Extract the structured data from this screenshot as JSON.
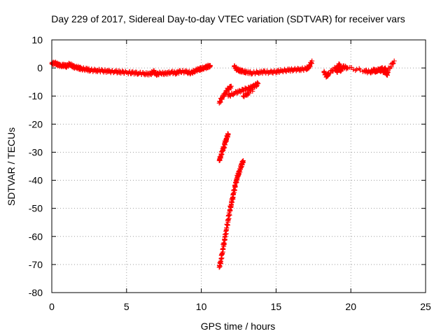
{
  "chart_data": {
    "type": "scatter",
    "title": "Day 229 of 2017, Sidereal Day-to-day VTEC variation (SDTVAR) for receiver vars",
    "xlabel": "GPS time / hours",
    "ylabel": "SDTVAR / TECUs",
    "xlim": [
      0,
      25
    ],
    "ylim": [
      -80,
      10
    ],
    "xticks": [
      0,
      5,
      10,
      15,
      20,
      25
    ],
    "yticks": [
      10,
      0,
      -10,
      -20,
      -30,
      -40,
      -50,
      -60,
      -70,
      -80
    ],
    "grid": true,
    "marker": "plus",
    "color": "#ff0000",
    "series": [
      {
        "name": "continuous track 0-10.5 h",
        "x": [
          0.0,
          0.2,
          0.4,
          0.6,
          0.8,
          1.0,
          1.2,
          1.4,
          1.6,
          1.8,
          2.0,
          2.3,
          2.6,
          3.0,
          3.4,
          3.8,
          4.2,
          4.6,
          5.0,
          5.4,
          5.8,
          6.2,
          6.6,
          6.8,
          7.0,
          7.3,
          7.6,
          8.0,
          8.3,
          8.6,
          9.0,
          9.3,
          9.6,
          9.8,
          10.0,
          10.2,
          10.4,
          10.6
        ],
        "y": [
          1.5,
          1.8,
          1.2,
          0.8,
          1.0,
          0.6,
          1.4,
          0.5,
          0.3,
          0.0,
          -0.3,
          -0.5,
          -0.8,
          -0.9,
          -1.0,
          -1.2,
          -1.3,
          -1.4,
          -1.6,
          -1.7,
          -1.9,
          -2.0,
          -2.2,
          -1.2,
          -2.3,
          -1.8,
          -2.0,
          -1.5,
          -1.8,
          -1.2,
          -1.4,
          -1.8,
          -1.0,
          -0.5,
          -0.3,
          0.0,
          0.5,
          0.6
        ]
      },
      {
        "name": "continuous track 12-17.5 h",
        "x": [
          12.2,
          12.4,
          12.6,
          12.8,
          13.0,
          13.4,
          13.8,
          14.2,
          14.6,
          15.0,
          15.4,
          15.8,
          16.2,
          16.6,
          17.0,
          17.2,
          17.4
        ],
        "y": [
          0.5,
          -0.5,
          -1.0,
          -1.2,
          -1.5,
          -1.8,
          -1.6,
          -1.4,
          -1.5,
          -1.3,
          -1.0,
          -0.8,
          -0.6,
          -0.5,
          -0.3,
          0.2,
          2.5
        ]
      },
      {
        "name": "scattered points 17.5-23 h",
        "x": [
          18.2,
          18.4,
          18.5,
          19.0,
          19.1,
          19.2,
          19.3,
          19.5,
          19.8,
          20.9,
          21.3,
          21.5,
          21.7,
          21.9,
          22.0,
          22.1,
          22.2,
          22.3,
          22.4,
          22.5,
          22.9
        ],
        "y": [
          -1.5,
          -3.0,
          -2.0,
          0.0,
          -1.5,
          1.5,
          -1.0,
          0.5,
          0.0,
          -1.0,
          -1.5,
          -0.8,
          -1.2,
          -0.5,
          -1.0,
          -0.2,
          -1.5,
          0.0,
          -2.5,
          -0.8,
          2.5
        ]
      },
      {
        "name": "upper rising branch",
        "x": [
          11.2,
          11.4,
          11.6,
          11.8,
          12.0
        ],
        "y": [
          -12.5,
          -10.5,
          -9.0,
          -7.5,
          -6.5
        ]
      },
      {
        "name": "upper oblique branch",
        "x": [
          11.8,
          12.2,
          12.6,
          13.0,
          13.3,
          13.6,
          13.8,
          13.2,
          12.8
        ],
        "y": [
          -10.0,
          -9.0,
          -8.2,
          -7.5,
          -7.0,
          -6.2,
          -5.5,
          -9.0,
          -10.0
        ]
      },
      {
        "name": "middle steep branch",
        "x": [
          11.2,
          11.3,
          11.4,
          11.5,
          11.6,
          11.7,
          11.8
        ],
        "y": [
          -33.0,
          -31.5,
          -29.5,
          -28.5,
          -26.5,
          -25.0,
          -23.5
        ]
      },
      {
        "name": "lower steep branch",
        "x": [
          11.2,
          11.3,
          11.4,
          11.5,
          11.6,
          11.7,
          11.8,
          11.9,
          12.0,
          12.1,
          12.2,
          12.3,
          12.4,
          12.5,
          12.6,
          12.7,
          12.8
        ],
        "y": [
          -71.0,
          -69.0,
          -66.0,
          -63.0,
          -60.0,
          -57.0,
          -54.0,
          -51.0,
          -48.5,
          -46.0,
          -43.5,
          -41.0,
          -39.0,
          -37.5,
          -36.0,
          -34.5,
          -33.0
        ]
      }
    ]
  }
}
